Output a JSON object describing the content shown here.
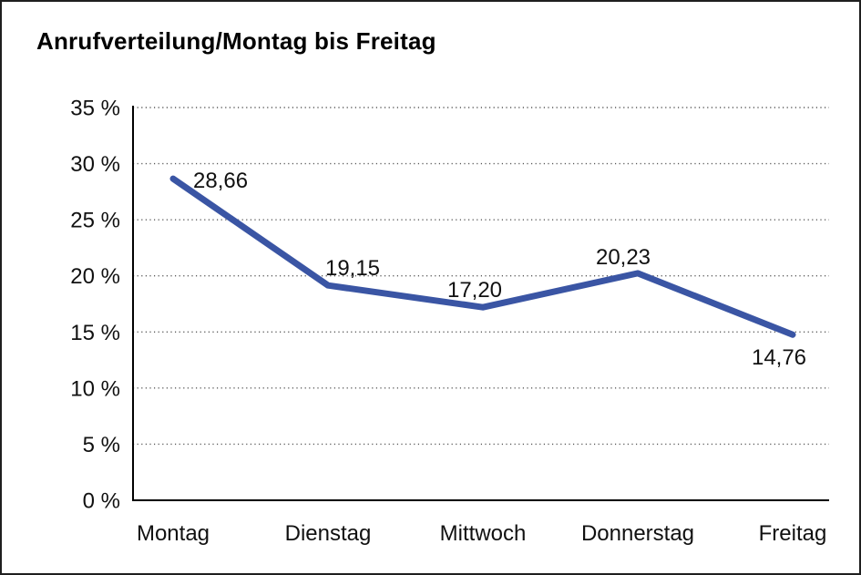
{
  "page": {
    "background": "#ffffff",
    "border_color": "#1f1f1f"
  },
  "chart_data": {
    "type": "line",
    "title": "Anrufverteilung/Montag bis Freitag",
    "categories": [
      "Montag",
      "Dienstag",
      "Mittwoch",
      "Donnerstag",
      "Freitag"
    ],
    "values": [
      28.66,
      19.15,
      17.2,
      20.23,
      14.76
    ],
    "value_labels": [
      "28,66",
      "19,15",
      "17,20",
      "20,23",
      "14,76"
    ],
    "series_name": "Anrufverteilung",
    "xlabel": "",
    "ylabel": "",
    "ylim": [
      0,
      35
    ],
    "ytick_step": 5,
    "ytick_labels": [
      "0 %",
      "5 %",
      "10 %",
      "15 %",
      "20 %",
      "25 %",
      "30 %",
      "35 %"
    ],
    "grid": "horizontal-dotted",
    "legend_position": "none",
    "line_color": "#3a55a4",
    "axis_color": "#000000",
    "gridline_color": "#595959",
    "label_color": "#111111"
  }
}
